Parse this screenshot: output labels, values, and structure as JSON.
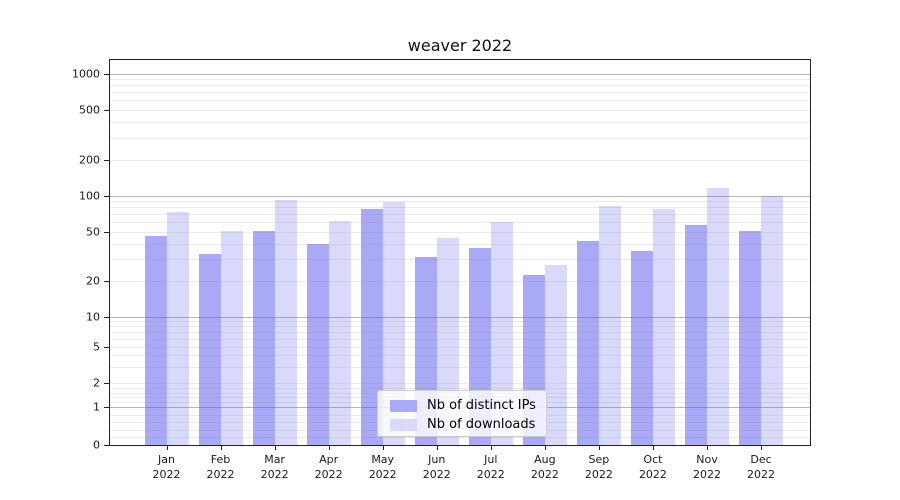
{
  "title": "weaver 2022",
  "legend": {
    "items": [
      {
        "label": "Nb of distinct IPs",
        "color": "#a9a9f7"
      },
      {
        "label": "Nb of downloads",
        "color": "#d9d9fb"
      }
    ]
  },
  "y_axis": {
    "tick_labels": [
      "0",
      "1",
      "2",
      "5",
      "10",
      "20",
      "50",
      "100",
      "200",
      "500",
      "1000"
    ]
  },
  "x_axis": {
    "months": [
      "Jan",
      "Feb",
      "Mar",
      "Apr",
      "May",
      "Jun",
      "Jul",
      "Aug",
      "Sep",
      "Oct",
      "Nov",
      "Dec"
    ],
    "year": "2022"
  },
  "colors": {
    "bar_distinct_ips": "#a9a9f7",
    "bar_downloads": "#d9d9fb",
    "major_grid": "#b5b5b5",
    "minor_grid": "#e7e7e7",
    "axis": "#222222"
  },
  "chart_data": {
    "type": "bar",
    "title": "weaver 2022",
    "categories": [
      "Jan 2022",
      "Feb 2022",
      "Mar 2022",
      "Apr 2022",
      "May 2022",
      "Jun 2022",
      "Jul 2022",
      "Aug 2022",
      "Sep 2022",
      "Oct 2022",
      "Nov 2022",
      "Dec 2022"
    ],
    "series": [
      {
        "name": "Nb of distinct IPs",
        "color": "#a9a9f7",
        "values": [
          46,
          33,
          51,
          40,
          78,
          31,
          37,
          22,
          42,
          35,
          57,
          51
        ]
      },
      {
        "name": "Nb of downloads",
        "color": "#d9d9fb",
        "values": [
          73,
          51,
          92,
          62,
          89,
          45,
          60,
          27,
          82,
          78,
          115,
          100
        ]
      }
    ],
    "yscale": "symlog",
    "ylim": [
      0,
      1300
    ],
    "yticks": [
      0,
      1,
      2,
      5,
      10,
      20,
      50,
      100,
      200,
      500,
      1000
    ],
    "xlabel": "",
    "ylabel": "",
    "grid": true,
    "legend_position": "lower center"
  }
}
